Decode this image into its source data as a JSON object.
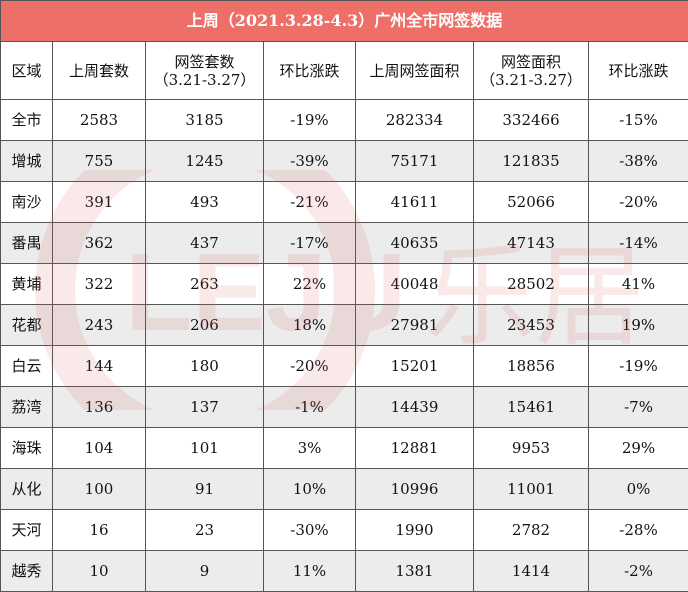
{
  "title": "上周（2021.3.28-4.3）广州全市网签数据",
  "watermark_text": "LEJU 乐居",
  "colors": {
    "title_bg": "#ee6f67",
    "even_row_bg": "#ececec",
    "border": "#555555"
  },
  "headers": [
    {
      "line1": "区域",
      "line2": ""
    },
    {
      "line1": "上周套数",
      "line2": ""
    },
    {
      "line1": "网签套数",
      "line2": "（3.21-3.27）"
    },
    {
      "line1": "环比涨跌",
      "line2": ""
    },
    {
      "line1": "上周网签面积",
      "line2": ""
    },
    {
      "line1": "网签面积",
      "line2": "（3.21-3.27）"
    },
    {
      "line1": "环比涨跌",
      "line2": ""
    }
  ],
  "rows": [
    [
      "全市",
      "2583",
      "3185",
      "-19%",
      "282334",
      "332466",
      "-15%"
    ],
    [
      "增城",
      "755",
      "1245",
      "-39%",
      "75171",
      "121835",
      "-38%"
    ],
    [
      "南沙",
      "391",
      "493",
      "-21%",
      "41611",
      "52066",
      "-20%"
    ],
    [
      "番禺",
      "362",
      "437",
      "-17%",
      "40635",
      "47143",
      "-14%"
    ],
    [
      "黄埔",
      "322",
      "263",
      "22%",
      "40048",
      "28502",
      "41%"
    ],
    [
      "花都",
      "243",
      "206",
      "18%",
      "27981",
      "23453",
      "19%"
    ],
    [
      "白云",
      "144",
      "180",
      "-20%",
      "15201",
      "18856",
      "-19%"
    ],
    [
      "荔湾",
      "136",
      "137",
      "-1%",
      "14439",
      "15461",
      "-7%"
    ],
    [
      "海珠",
      "104",
      "101",
      "3%",
      "12881",
      "9953",
      "29%"
    ],
    [
      "从化",
      "100",
      "91",
      "10%",
      "10996",
      "11001",
      "0%"
    ],
    [
      "天河",
      "16",
      "23",
      "-30%",
      "1990",
      "2782",
      "-28%"
    ],
    [
      "越秀",
      "10",
      "9",
      "11%",
      "1381",
      "1414",
      "-2%"
    ]
  ]
}
